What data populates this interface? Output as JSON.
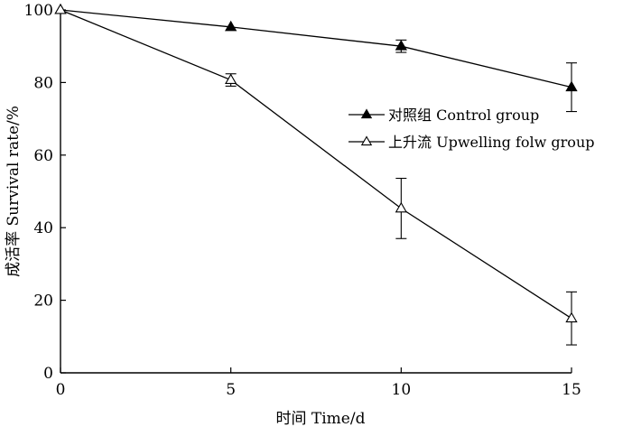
{
  "chart_data": {
    "type": "line",
    "xlabel": "时间 Time/d",
    "ylabel": "成活率 Survival rate/%",
    "xlim": [
      0,
      15
    ],
    "ylim": [
      0,
      100
    ],
    "xticks": [
      "0",
      "5",
      "10",
      "15"
    ],
    "yticks": [
      "0",
      "20",
      "40",
      "60",
      "80",
      "100"
    ],
    "grid": false,
    "legend_position": "right-center",
    "series": [
      {
        "name": "对照组 Control group",
        "marker": "filled-triangle",
        "color": "#000000",
        "x": [
          0,
          5,
          10,
          15
        ],
        "y": [
          100,
          95.3,
          90,
          78.7
        ],
        "error": [
          0,
          0,
          1.7,
          6.7
        ]
      },
      {
        "name": "上升流 Upwelling folw group",
        "marker": "open-triangle",
        "color": "#000000",
        "x": [
          0,
          5,
          10,
          15
        ],
        "y": [
          100,
          80.7,
          45.3,
          15
        ],
        "error": [
          0,
          1.7,
          8.3,
          7.3
        ]
      }
    ]
  }
}
